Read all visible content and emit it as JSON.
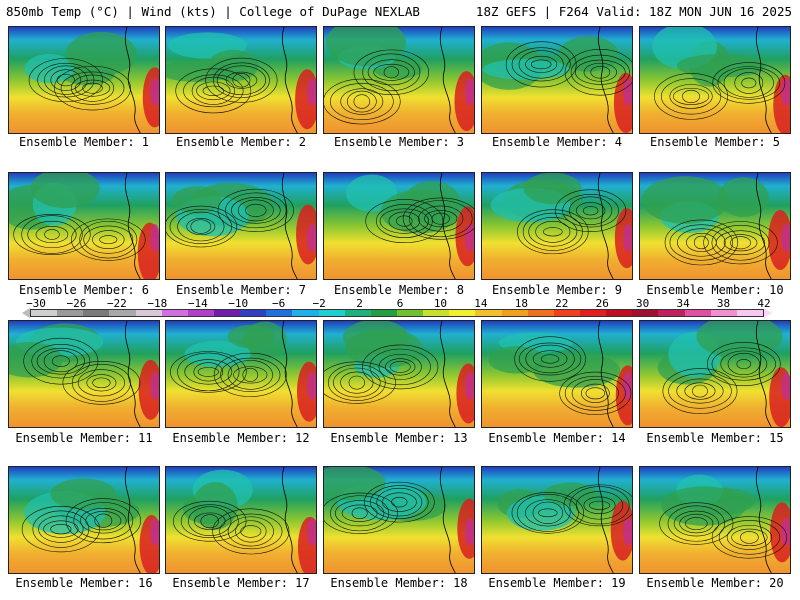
{
  "header": {
    "left": "850mb Temp (°C) | Wind (kts) | College of DuPage NEXLAB",
    "right": "18Z GEFS | F264 Valid: 18Z MON JUN 16 2025"
  },
  "member_prefix": "Ensemble Member:",
  "members": [
    "1",
    "2",
    "3",
    "4",
    "5",
    "6",
    "7",
    "8",
    "9",
    "10",
    "11",
    "12",
    "13",
    "14",
    "15",
    "16",
    "17",
    "18",
    "19",
    "20"
  ],
  "colorbar": {
    "ticks": [
      "-30",
      "-26",
      "-22",
      "-18",
      "-14",
      "-10",
      "-6",
      "-2",
      "2",
      "6",
      "10",
      "14",
      "18",
      "22",
      "26",
      "30",
      "34",
      "38",
      "42"
    ],
    "colors": [
      "#cfcfcf",
      "#9a9a9a",
      "#7a7a7a",
      "#a8a8a8",
      "#d8c8d8",
      "#d070e0",
      "#b040c8",
      "#7020a8",
      "#3040c0",
      "#2070e0",
      "#20b0e8",
      "#20d0d0",
      "#20b080",
      "#20a040",
      "#70c030",
      "#c8e030",
      "#f0f030",
      "#f0c030",
      "#f0a020",
      "#f07020",
      "#f04020",
      "#e02020",
      "#c01020",
      "#a01030",
      "#c02060",
      "#e050a0",
      "#f090d0",
      "#f8c8f0"
    ],
    "arrow_left": "#bbbbbb",
    "arrow_right": "#f8d8f8"
  }
}
